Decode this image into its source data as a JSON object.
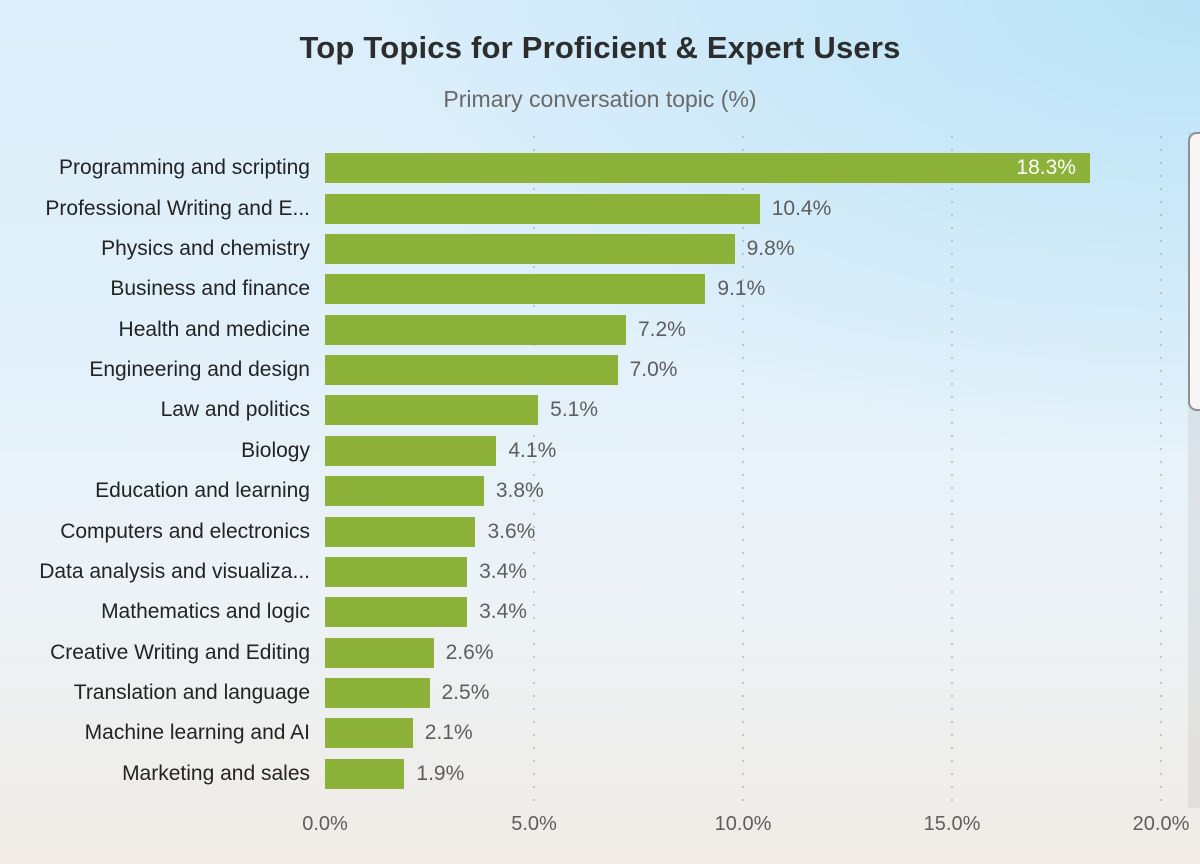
{
  "chart_data": {
    "type": "bar",
    "orientation": "horizontal",
    "title": "Top Topics for Proficient & Expert Users",
    "subtitle": "Primary conversation topic (%)",
    "categories": [
      "Programming and scripting",
      "Professional Writing and E...",
      "Physics and chemistry",
      "Business and finance",
      "Health and medicine",
      "Engineering and design",
      "Law and politics",
      "Biology",
      "Education and learning",
      "Computers and electronics",
      "Data analysis and visualiza...",
      "Mathematics and logic",
      "Creative Writing and Editing",
      "Translation and language",
      "Machine learning and AI",
      "Marketing and sales"
    ],
    "values": [
      18.3,
      10.4,
      9.8,
      9.1,
      7.2,
      7.0,
      5.1,
      4.1,
      3.8,
      3.6,
      3.4,
      3.4,
      2.6,
      2.5,
      2.1,
      1.9
    ],
    "value_labels": [
      "18.3%",
      "10.4%",
      "9.8%",
      "9.1%",
      "7.2%",
      "7.0%",
      "5.1%",
      "4.1%",
      "3.8%",
      "3.6%",
      "3.4%",
      "3.4%",
      "2.6%",
      "2.5%",
      "2.1%",
      "1.9%"
    ],
    "inside_label_indices": [
      0
    ],
    "xlim": [
      0,
      20
    ],
    "x_ticks": [
      {
        "value": 0,
        "label": "0.0%"
      },
      {
        "value": 5,
        "label": "5.0%"
      },
      {
        "value": 10,
        "label": "10.0%"
      },
      {
        "value": 15,
        "label": "15.0%"
      },
      {
        "value": 20,
        "label": "20.0%"
      }
    ],
    "gridline_values": [
      5,
      10,
      15,
      20
    ],
    "grid": "dotted-vertical",
    "legend": "none",
    "colors": {
      "bar": "#8cb23a",
      "value_label": "#5e5e5e",
      "inside_value_label": "#ffffff",
      "category_label": "#232323",
      "axis_label": "#5e5e5e",
      "title": "#2d2d2d",
      "subtitle": "#696969"
    }
  }
}
